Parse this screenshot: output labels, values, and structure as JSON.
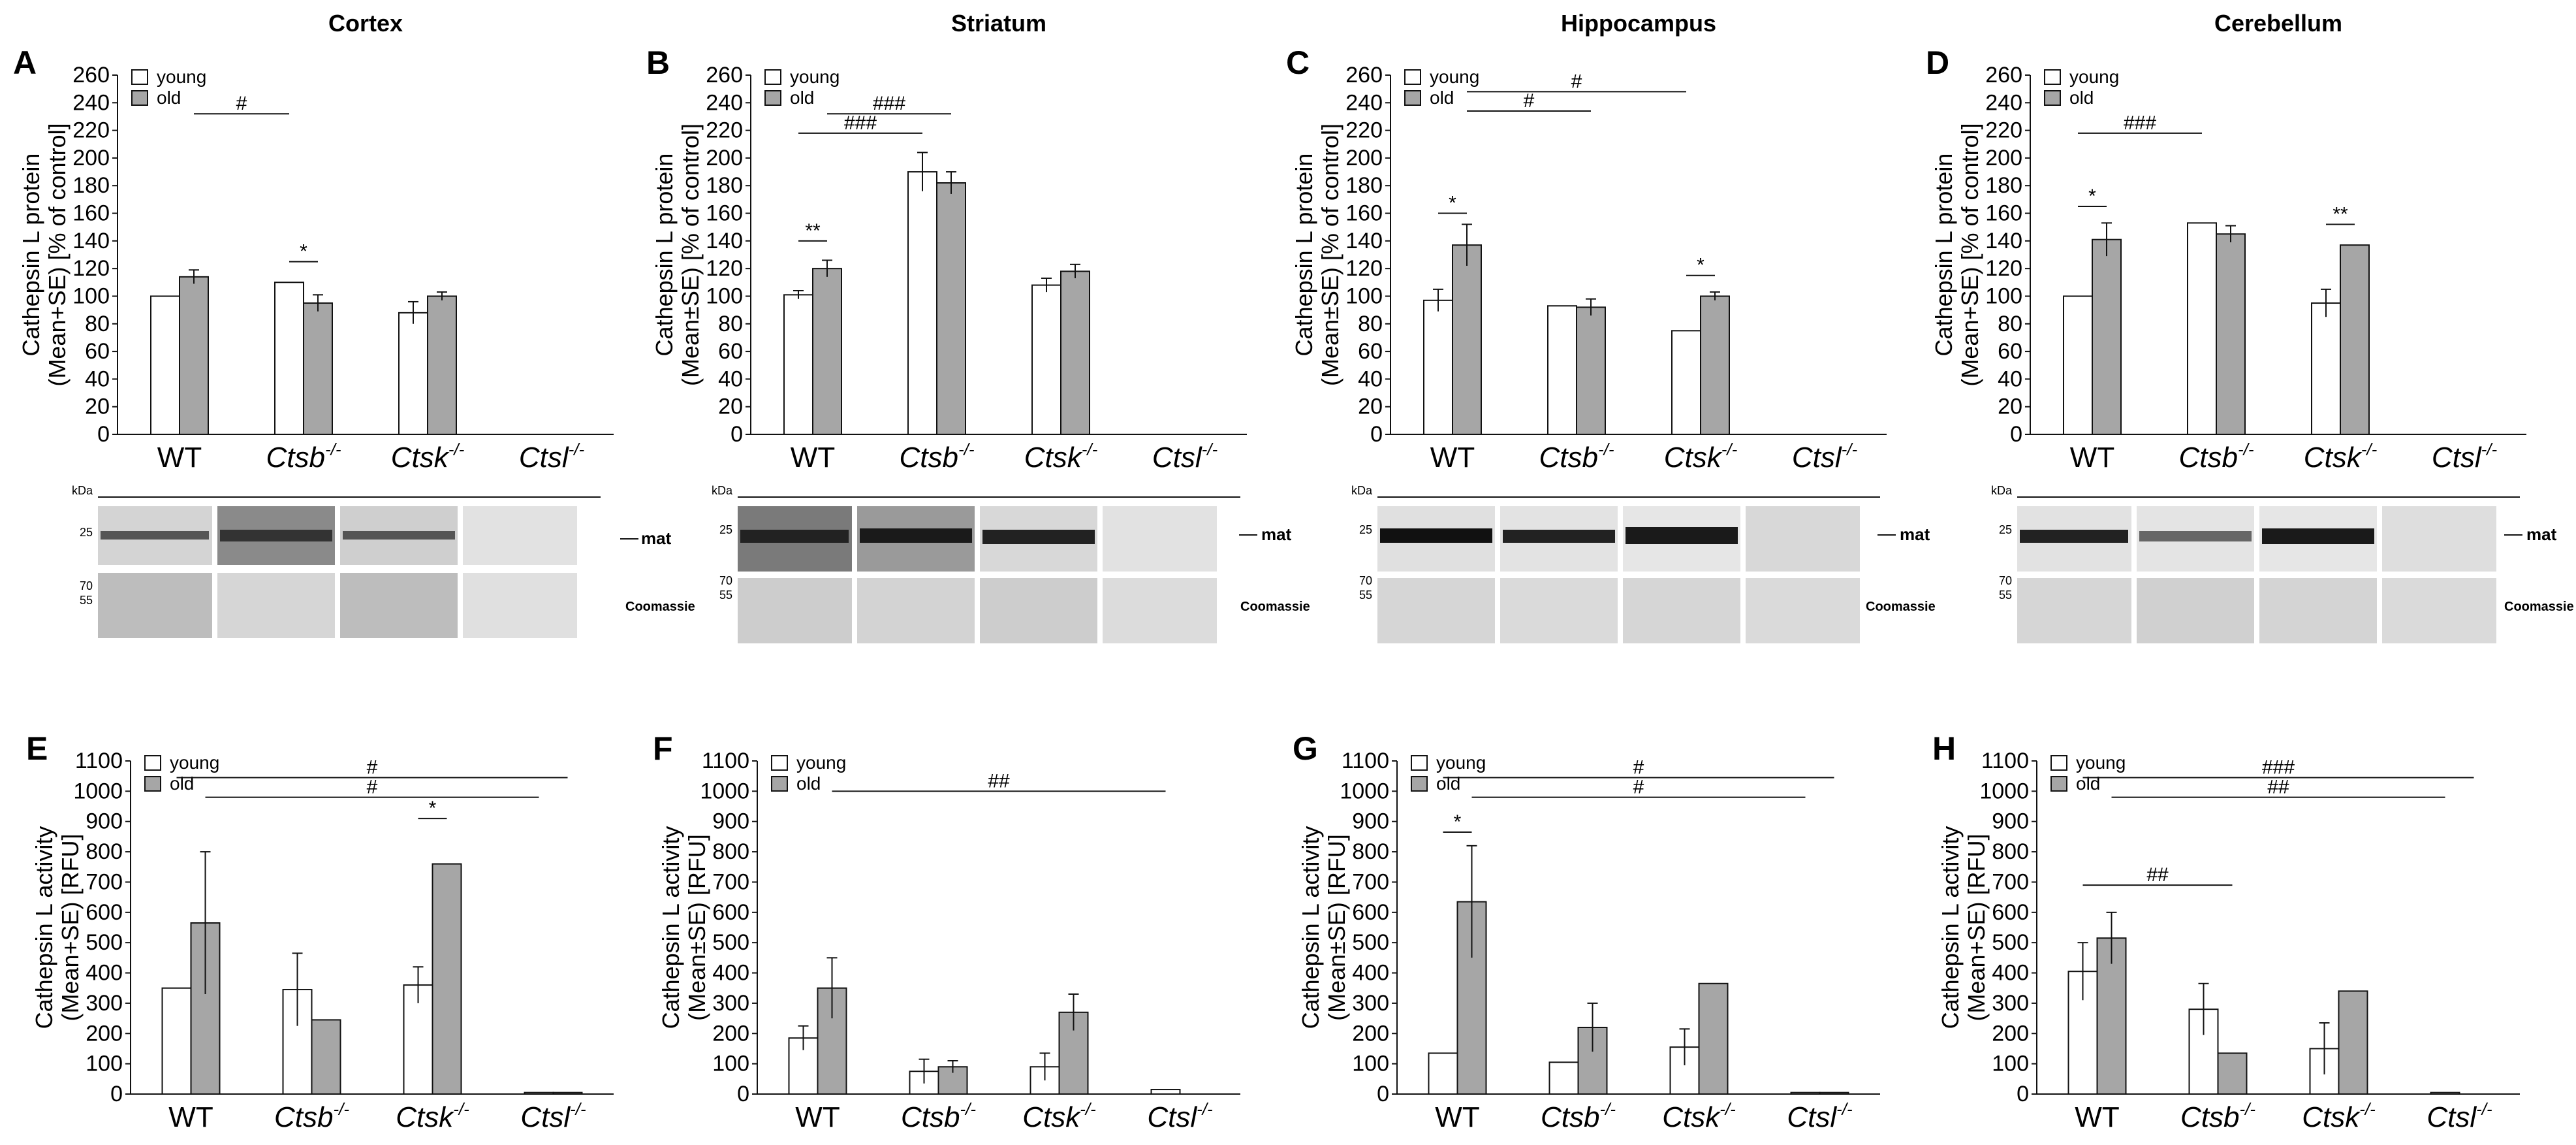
{
  "region_titles": [
    "Cortex",
    "Striatum",
    "Hippocampus",
    "Cerebellum"
  ],
  "legend": {
    "young": "young",
    "old": "old"
  },
  "categories": [
    "WT",
    "Ctsb",
    "Ctsk",
    "Ctsl"
  ],
  "superscript": "-/-",
  "blot_labels": {
    "kda": "kDa",
    "mat": "mat",
    "coomassie": "Coomassie",
    "m25": "25",
    "m70": "70",
    "m55": "55"
  },
  "colors": {
    "young": "#ffffff",
    "old": "#a6a6a6",
    "axis": "#111111"
  },
  "chart_data": [
    {
      "id": "A",
      "panel": "A",
      "type": "bar",
      "title": "Cortex",
      "ylabel": [
        "Cathepsin L protein",
        "(Mean+SE) [% of control]"
      ],
      "ylim": [
        0,
        260
      ],
      "ytick_step": 20,
      "categories": [
        "WT",
        "Ctsb-/-",
        "Ctsk-/-",
        "Ctsl-/-"
      ],
      "series": [
        {
          "name": "young",
          "values": [
            100,
            110,
            88,
            0
          ],
          "errors": [
            0,
            0,
            8,
            0
          ]
        },
        {
          "name": "old",
          "values": [
            114,
            95,
            100,
            0
          ],
          "errors": [
            5,
            6,
            3,
            0
          ]
        }
      ],
      "annotations": [
        {
          "text": "#",
          "from": [
            0,
            1
          ],
          "to": [
            1,
            0
          ],
          "y": 232
        },
        {
          "text": "*",
          "from": [
            1,
            0
          ],
          "to": [
            1,
            1
          ],
          "y": 125
        }
      ]
    },
    {
      "id": "B",
      "panel": "B",
      "type": "bar",
      "title": "Striatum",
      "ylabel": [
        "Cathepsin L protein",
        "(Mean±SE) [% of control]"
      ],
      "ylim": [
        0,
        260
      ],
      "ytick_step": 20,
      "categories": [
        "WT",
        "Ctsb-/-",
        "Ctsk-/-",
        "Ctsl-/-"
      ],
      "series": [
        {
          "name": "young",
          "values": [
            101,
            190,
            108,
            0
          ],
          "errors": [
            3,
            14,
            5,
            0
          ]
        },
        {
          "name": "old",
          "values": [
            120,
            182,
            118,
            0
          ],
          "errors": [
            6,
            8,
            5,
            0
          ]
        }
      ],
      "annotations": [
        {
          "text": "###",
          "from": [
            0,
            1
          ],
          "to": [
            1,
            1
          ],
          "y": 232
        },
        {
          "text": "###",
          "from": [
            0,
            0
          ],
          "to": [
            1,
            0
          ],
          "y": 218
        },
        {
          "text": "**",
          "from": [
            0,
            0
          ],
          "to": [
            0,
            1
          ],
          "y": 140
        }
      ]
    },
    {
      "id": "C",
      "panel": "C",
      "type": "bar",
      "title": "Hippocampus",
      "ylabel": [
        "Cathepsin L protein",
        "(Mean±SE) [% of control]"
      ],
      "ylim": [
        0,
        260
      ],
      "ytick_step": 20,
      "categories": [
        "WT",
        "Ctsb-/-",
        "Ctsk-/-",
        "Ctsl-/-"
      ],
      "series": [
        {
          "name": "young",
          "values": [
            97,
            93,
            75,
            0
          ],
          "errors": [
            8,
            0,
            0,
            0
          ]
        },
        {
          "name": "old",
          "values": [
            137,
            92,
            100,
            0
          ],
          "errors": [
            15,
            6,
            3,
            0
          ]
        }
      ],
      "annotations": [
        {
          "text": "#",
          "from": [
            0,
            1
          ],
          "to": [
            2,
            0
          ],
          "y": 248
        },
        {
          "text": "#",
          "from": [
            0,
            1
          ],
          "to": [
            1,
            1
          ],
          "y": 234
        },
        {
          "text": "*",
          "from": [
            0,
            0
          ],
          "to": [
            0,
            1
          ],
          "y": 160
        },
        {
          "text": "*",
          "from": [
            2,
            0
          ],
          "to": [
            2,
            1
          ],
          "y": 115
        }
      ]
    },
    {
      "id": "D",
      "panel": "D",
      "type": "bar",
      "title": "Cerebellum",
      "ylabel": [
        "Cathepsin L protein",
        "(Mean+SE) [% of control]"
      ],
      "ylim": [
        0,
        260
      ],
      "ytick_step": 20,
      "categories": [
        "WT",
        "Ctsb-/-",
        "Ctsk-/-",
        "Ctsl-/-"
      ],
      "series": [
        {
          "name": "young",
          "values": [
            100,
            153,
            95,
            0
          ],
          "errors": [
            0,
            0,
            10,
            0
          ]
        },
        {
          "name": "old",
          "values": [
            141,
            145,
            137,
            0
          ],
          "errors": [
            12,
            6,
            0,
            0
          ]
        }
      ],
      "annotations": [
        {
          "text": "###",
          "from": [
            0,
            0
          ],
          "to": [
            1,
            0
          ],
          "y": 218
        },
        {
          "text": "*",
          "from": [
            0,
            0
          ],
          "to": [
            0,
            1
          ],
          "y": 165
        },
        {
          "text": "**",
          "from": [
            2,
            0
          ],
          "to": [
            2,
            1
          ],
          "y": 152
        }
      ]
    },
    {
      "id": "E",
      "panel": "E",
      "type": "bar",
      "title": "",
      "ylabel": [
        "Cathepsin L activity",
        "(Mean+SE) [RFU]"
      ],
      "ylim": [
        0,
        1100
      ],
      "ytick_step": 100,
      "categories": [
        "WT",
        "Ctsb-/-",
        "Ctsk-/-",
        "Ctsl-/-"
      ],
      "series": [
        {
          "name": "young",
          "values": [
            350,
            345,
            360,
            5
          ],
          "errors": [
            0,
            120,
            60,
            0
          ]
        },
        {
          "name": "old",
          "values": [
            565,
            245,
            760,
            5
          ],
          "errors": [
            235,
            0,
            0,
            0
          ]
        }
      ],
      "annotations": [
        {
          "text": "#",
          "from": [
            0,
            0
          ],
          "to": [
            3,
            1
          ],
          "y": 1045
        },
        {
          "text": "#",
          "from": [
            0,
            1
          ],
          "to": [
            3,
            0
          ],
          "y": 980
        },
        {
          "text": "*",
          "from": [
            2,
            0
          ],
          "to": [
            2,
            1
          ],
          "y": 910
        }
      ]
    },
    {
      "id": "F",
      "panel": "F",
      "type": "bar",
      "title": "",
      "ylabel": [
        "Cathepsin L activity",
        "(Mean±SE) [RFU]"
      ],
      "ylim": [
        0,
        1100
      ],
      "ytick_step": 100,
      "categories": [
        "WT",
        "Ctsb-/-",
        "Ctsk-/-",
        "Ctsl-/-"
      ],
      "series": [
        {
          "name": "young",
          "values": [
            185,
            75,
            90,
            15
          ],
          "errors": [
            40,
            40,
            45,
            0
          ]
        },
        {
          "name": "old",
          "values": [
            350,
            90,
            270,
            0
          ],
          "errors": [
            100,
            20,
            60,
            0
          ]
        }
      ],
      "annotations": [
        {
          "text": "##",
          "from": [
            0,
            1
          ],
          "to": [
            3,
            0
          ],
          "y": 1000
        }
      ]
    },
    {
      "id": "G",
      "panel": "G",
      "type": "bar",
      "title": "",
      "ylabel": [
        "Cathepsin L activity",
        "(Mean±SE) [RFU]"
      ],
      "ylim": [
        0,
        1100
      ],
      "ytick_step": 100,
      "categories": [
        "WT",
        "Ctsb-/-",
        "Ctsk-/-",
        "Ctsl-/-"
      ],
      "series": [
        {
          "name": "young",
          "values": [
            135,
            105,
            155,
            5
          ],
          "errors": [
            0,
            0,
            60,
            0
          ]
        },
        {
          "name": "old",
          "values": [
            635,
            220,
            365,
            5
          ],
          "errors": [
            185,
            80,
            0,
            0
          ]
        }
      ],
      "annotations": [
        {
          "text": "#",
          "from": [
            0,
            0
          ],
          "to": [
            3,
            1
          ],
          "y": 1045
        },
        {
          "text": "#",
          "from": [
            0,
            1
          ],
          "to": [
            3,
            0
          ],
          "y": 980
        },
        {
          "text": "*",
          "from": [
            0,
            0
          ],
          "to": [
            0,
            1
          ],
          "y": 865
        }
      ]
    },
    {
      "id": "H",
      "panel": "H",
      "type": "bar",
      "title": "",
      "ylabel": [
        "Cathepsin L activity",
        "(Mean+SE) [RFU]"
      ],
      "ylim": [
        0,
        1100
      ],
      "ytick_step": 100,
      "categories": [
        "WT",
        "Ctsb-/-",
        "Ctsk-/-",
        "Ctsl-/-"
      ],
      "series": [
        {
          "name": "young",
          "values": [
            405,
            280,
            150,
            5
          ],
          "errors": [
            95,
            85,
            85,
            0
          ]
        },
        {
          "name": "old",
          "values": [
            515,
            135,
            340,
            0
          ],
          "errors": [
            85,
            0,
            0,
            0
          ]
        }
      ],
      "annotations": [
        {
          "text": "###",
          "from": [
            0,
            0
          ],
          "to": [
            3,
            1
          ],
          "y": 1045
        },
        {
          "text": "##",
          "from": [
            0,
            1
          ],
          "to": [
            3,
            0
          ],
          "y": 980
        },
        {
          "text": "##",
          "from": [
            0,
            0
          ],
          "to": [
            1,
            1
          ],
          "y": 690
        }
      ]
    }
  ]
}
